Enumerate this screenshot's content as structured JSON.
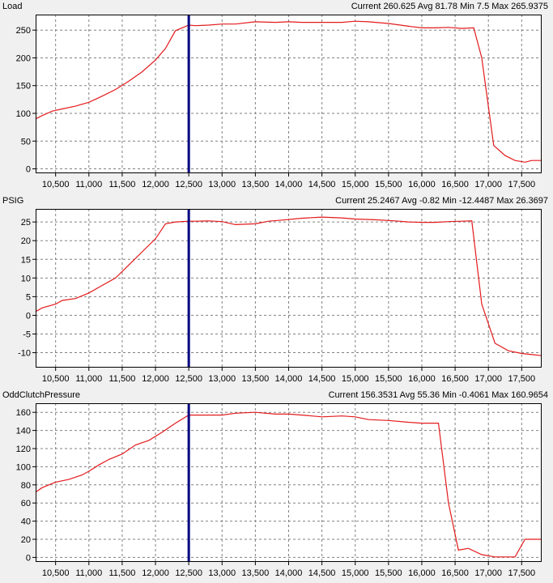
{
  "colors": {
    "line": "#e31a1c",
    "cursor": "#000080",
    "grid": "#808080",
    "plot_bg": "#ffffff",
    "frame": "#000000"
  },
  "x_ticks": [
    10500,
    11000,
    11500,
    12000,
    12500,
    13000,
    13500,
    14000,
    14500,
    15000,
    15500,
    16000,
    16500,
    17000,
    17500
  ],
  "x_tick_labels": [
    "10,500",
    "11,000",
    "11,500",
    "12,000",
    "12,500",
    "13,000",
    "13,500",
    "14,000",
    "14,500",
    "15,000",
    "15,500",
    "16,000",
    "16,500",
    "17,000",
    "17,500"
  ],
  "cursor_x": 12500,
  "chart_data": [
    {
      "type": "line",
      "title": "Load",
      "stats": {
        "current_label": "Current",
        "current": "260.625",
        "avg_label": "Avg",
        "avg": "81.78",
        "min_label": "Min",
        "min": "7.5",
        "max_label": "Max",
        "max": "265.9375"
      },
      "xlim": [
        10200,
        17800
      ],
      "ylim": [
        -8,
        278
      ],
      "yticks": [
        0,
        50,
        100,
        150,
        200,
        250
      ],
      "grid": true,
      "series": [
        {
          "x": [
            10200,
            10300,
            10450,
            10600,
            10800,
            11000,
            11200,
            11400,
            11600,
            11800,
            12000,
            12150,
            12300,
            12500,
            12600,
            12800,
            13000,
            13200,
            13500,
            13800,
            14000,
            14200,
            14500,
            14800,
            15000,
            15200,
            15500,
            15800,
            16000,
            16200,
            16400,
            16600,
            16780,
            16900,
            17080,
            17250,
            17400,
            17550,
            17650,
            17800
          ],
          "y": [
            90,
            96,
            104,
            108,
            113,
            120,
            131,
            143,
            158,
            175,
            196,
            217,
            249,
            259,
            258,
            259,
            261,
            261,
            265,
            264,
            265,
            264,
            264,
            264,
            266,
            265,
            262,
            257,
            254,
            254,
            255,
            253,
            254,
            200,
            42,
            24,
            15,
            12,
            15,
            15
          ]
        }
      ]
    },
    {
      "type": "line",
      "title": "PSIG",
      "stats": {
        "current_label": "Current",
        "current": "25.2467",
        "avg_label": "Avg",
        "avg": "-0.82",
        "min_label": "Min",
        "min": "-12.4487",
        "max_label": "Max",
        "max": "26.3697"
      },
      "xlim": [
        10200,
        17800
      ],
      "ylim": [
        -14,
        28.5
      ],
      "yticks": [
        -10,
        -5,
        0,
        5,
        10,
        15,
        20,
        25
      ],
      "grid": true,
      "series": [
        {
          "x": [
            10200,
            10300,
            10500,
            10600,
            10800,
            11000,
            11200,
            11400,
            11600,
            11800,
            12000,
            12150,
            12300,
            12500,
            12600,
            12800,
            13000,
            13200,
            13500,
            13700,
            13900,
            14200,
            14500,
            14800,
            15000,
            15300,
            15600,
            15800,
            16000,
            16200,
            16400,
            16600,
            16750,
            16900,
            17100,
            17300,
            17500,
            17650,
            17800
          ],
          "y": [
            1,
            2,
            3,
            4,
            4.5,
            6,
            8,
            10,
            13.5,
            17,
            20.5,
            24.5,
            25,
            25.2,
            25.2,
            25.3,
            25.1,
            24.3,
            24.5,
            25.2,
            25.5,
            26,
            26.3,
            26.1,
            25.8,
            25.6,
            25.3,
            25,
            24.9,
            24.9,
            25.1,
            25.2,
            25.3,
            3,
            -7.5,
            -9.5,
            -10.2,
            -10.5,
            -10.8
          ]
        }
      ]
    },
    {
      "type": "line",
      "title": "OddClutchPressure",
      "stats": {
        "current_label": "Current",
        "current": "156.3531",
        "avg_label": "Avg",
        "avg": "55.36",
        "min_label": "Min",
        "min": "-0.4061",
        "max_label": "Max",
        "max": "160.9654"
      },
      "xlim": [
        10200,
        17800
      ],
      "ylim": [
        -5,
        170
      ],
      "yticks": [
        0,
        20,
        40,
        60,
        80,
        100,
        120,
        140,
        160
      ],
      "grid": true,
      "series": [
        {
          "x": [
            10200,
            10300,
            10500,
            10700,
            10900,
            11000,
            11150,
            11300,
            11500,
            11700,
            11900,
            12100,
            12300,
            12500,
            12600,
            12800,
            13000,
            13200,
            13500,
            13800,
            14000,
            14200,
            14500,
            14800,
            15000,
            15200,
            15500,
            15800,
            16000,
            16100,
            16250,
            16400,
            16550,
            16700,
            16900,
            17100,
            17250,
            17400,
            17550,
            17650,
            17800
          ],
          "y": [
            72,
            77,
            83,
            86,
            91,
            95,
            102,
            108,
            114,
            124,
            129,
            138,
            148,
            157,
            157,
            157,
            157,
            159,
            160,
            158,
            158,
            157,
            155,
            156,
            155,
            152,
            151,
            149,
            148,
            148,
            148,
            60,
            8,
            10,
            3,
            0.5,
            0.5,
            0.5,
            20,
            20,
            20
          ]
        }
      ]
    }
  ]
}
